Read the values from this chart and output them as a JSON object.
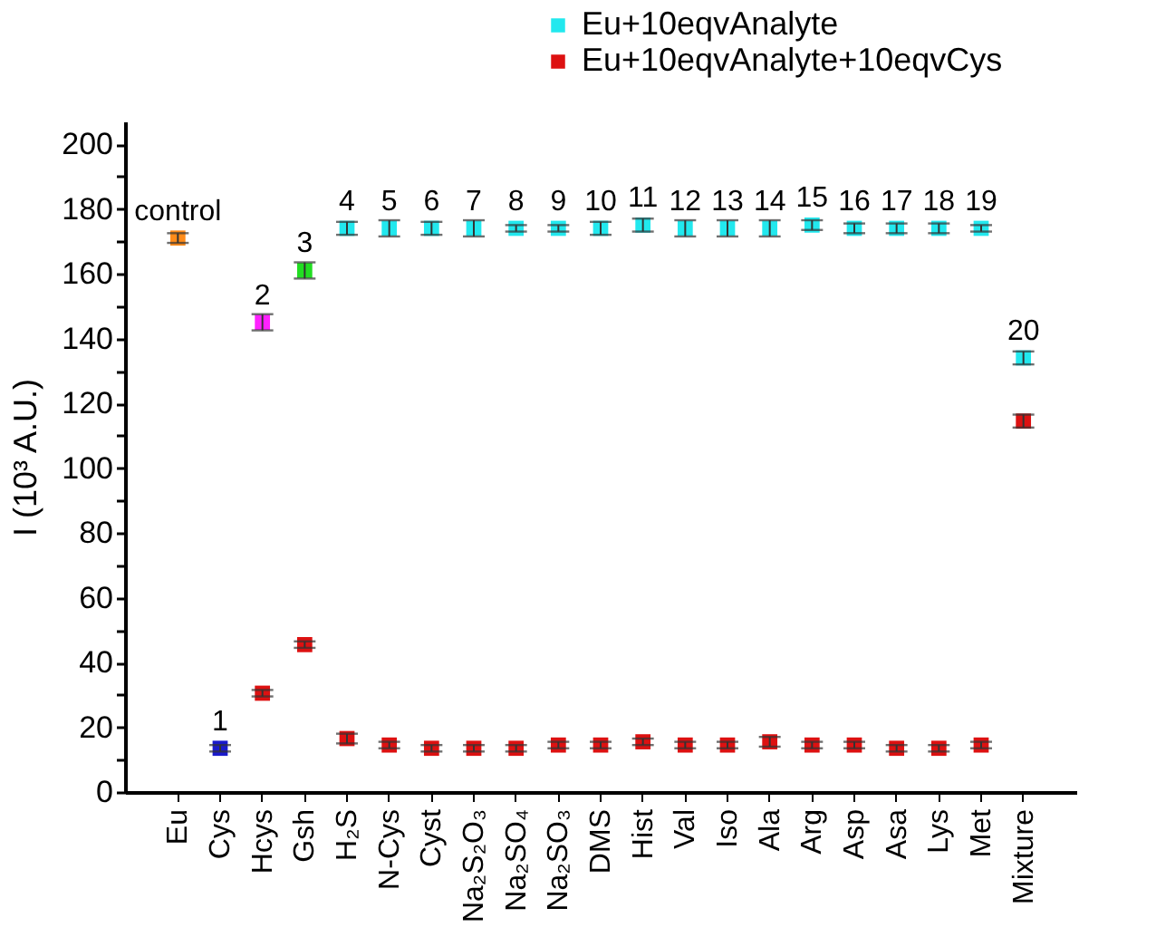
{
  "chart_data": {
    "type": "scatter",
    "ylabel": "I (10³ A.U.)",
    "categories": [
      "Eu",
      "Cys",
      "Hcys",
      "Gsh",
      "H₂S",
      "N-Cys",
      "Cyst",
      "Na₂S₂O₃",
      "Na₂SO₄",
      "Na₂SO₃",
      "DMS",
      "Hist",
      "Val",
      "Iso",
      "Ala",
      "Arg",
      "Asp",
      "Asa",
      "Lys",
      "Met",
      "Mixture"
    ],
    "series": [
      {
        "name": "Eu+10eqvAnalyte",
        "color": "#22e8ee",
        "colors": [
          "#ff8c1a",
          "#1a1acc",
          "#ff22ff",
          "#22dd22",
          "#22e8ee",
          "#22e8ee",
          "#22e8ee",
          "#22e8ee",
          "#22e8ee",
          "#22e8ee",
          "#22e8ee",
          "#22e8ee",
          "#22e8ee",
          "#22e8ee",
          "#22e8ee",
          "#22e8ee",
          "#22e8ee",
          "#22e8ee",
          "#22e8ee",
          "#22e8ee",
          "#22e8ee"
        ],
        "values": [
          171,
          13.5,
          145,
          161,
          174,
          174,
          174,
          174,
          174,
          174,
          174,
          175,
          174,
          174,
          174,
          175,
          174,
          174,
          174,
          174,
          134
        ],
        "errors": [
          1.5,
          1,
          2.5,
          2.5,
          2,
          2.5,
          2,
          2.5,
          1,
          1,
          2,
          2,
          2.5,
          2.5,
          2.5,
          1.5,
          1.5,
          1.5,
          1.5,
          1,
          2
        ]
      },
      {
        "name": "Eu+10eqvAnalyte+10eqvCys",
        "color": "#dd1111",
        "values": [
          null,
          null,
          30.5,
          45.5,
          16.5,
          14.5,
          13.5,
          13.5,
          13.5,
          14.5,
          14.5,
          15.5,
          14.5,
          14.5,
          15.5,
          14.5,
          14.5,
          13.5,
          13.5,
          14.5,
          114.5
        ],
        "errors": [
          null,
          null,
          1,
          1,
          1.5,
          1,
          1,
          1,
          1,
          1,
          1,
          1,
          1,
          1,
          1.5,
          1,
          1,
          1,
          1,
          1,
          2
        ]
      }
    ],
    "annotations": [
      {
        "text": "control",
        "x": "Eu",
        "y": 171
      },
      {
        "text": "1",
        "x": "Cys",
        "y": 13.5
      },
      {
        "text": "2",
        "x": "Hcys",
        "y": 145
      },
      {
        "text": "3",
        "x": "Gsh",
        "y": 161
      },
      {
        "text": "4",
        "x": "H₂S",
        "y": 174
      },
      {
        "text": "5",
        "x": "N-Cys",
        "y": 174
      },
      {
        "text": "6",
        "x": "Cyst",
        "y": 174
      },
      {
        "text": "7",
        "x": "Na₂S₂O₃",
        "y": 174
      },
      {
        "text": "8",
        "x": "Na₂SO₄",
        "y": 174
      },
      {
        "text": "9",
        "x": "Na₂SO₃",
        "y": 174
      },
      {
        "text": "10",
        "x": "DMS",
        "y": 174
      },
      {
        "text": "11",
        "x": "Hist",
        "y": 175
      },
      {
        "text": "12",
        "x": "Val",
        "y": 174
      },
      {
        "text": "13",
        "x": "Iso",
        "y": 174
      },
      {
        "text": "14",
        "x": "Ala",
        "y": 174
      },
      {
        "text": "15",
        "x": "Arg",
        "y": 175
      },
      {
        "text": "16",
        "x": "Asp",
        "y": 174
      },
      {
        "text": "17",
        "x": "Asa",
        "y": 174
      },
      {
        "text": "18",
        "x": "Lys",
        "y": 174
      },
      {
        "text": "19",
        "x": "Met",
        "y": 174
      },
      {
        "text": "20",
        "x": "Mixture",
        "y": 134
      }
    ],
    "ylim": [
      0,
      207
    ],
    "yticks": [
      0,
      {
        "value": 10,
        "label": null
      },
      20,
      {
        "value": 30,
        "label": null
      },
      40,
      {
        "value": 50,
        "label": null
      },
      60,
      {
        "value": 70,
        "label": null
      },
      80,
      {
        "value": 90,
        "label": null
      },
      100,
      {
        "value": 110,
        "label": null
      },
      120,
      {
        "value": 130,
        "label": null
      },
      140,
      {
        "value": 150,
        "label": null
      },
      160,
      {
        "value": 170,
        "label": null
      },
      180,
      {
        "value": 190,
        "label": null
      },
      200
    ],
    "marker": "square",
    "legend": "top",
    "grid": false
  }
}
